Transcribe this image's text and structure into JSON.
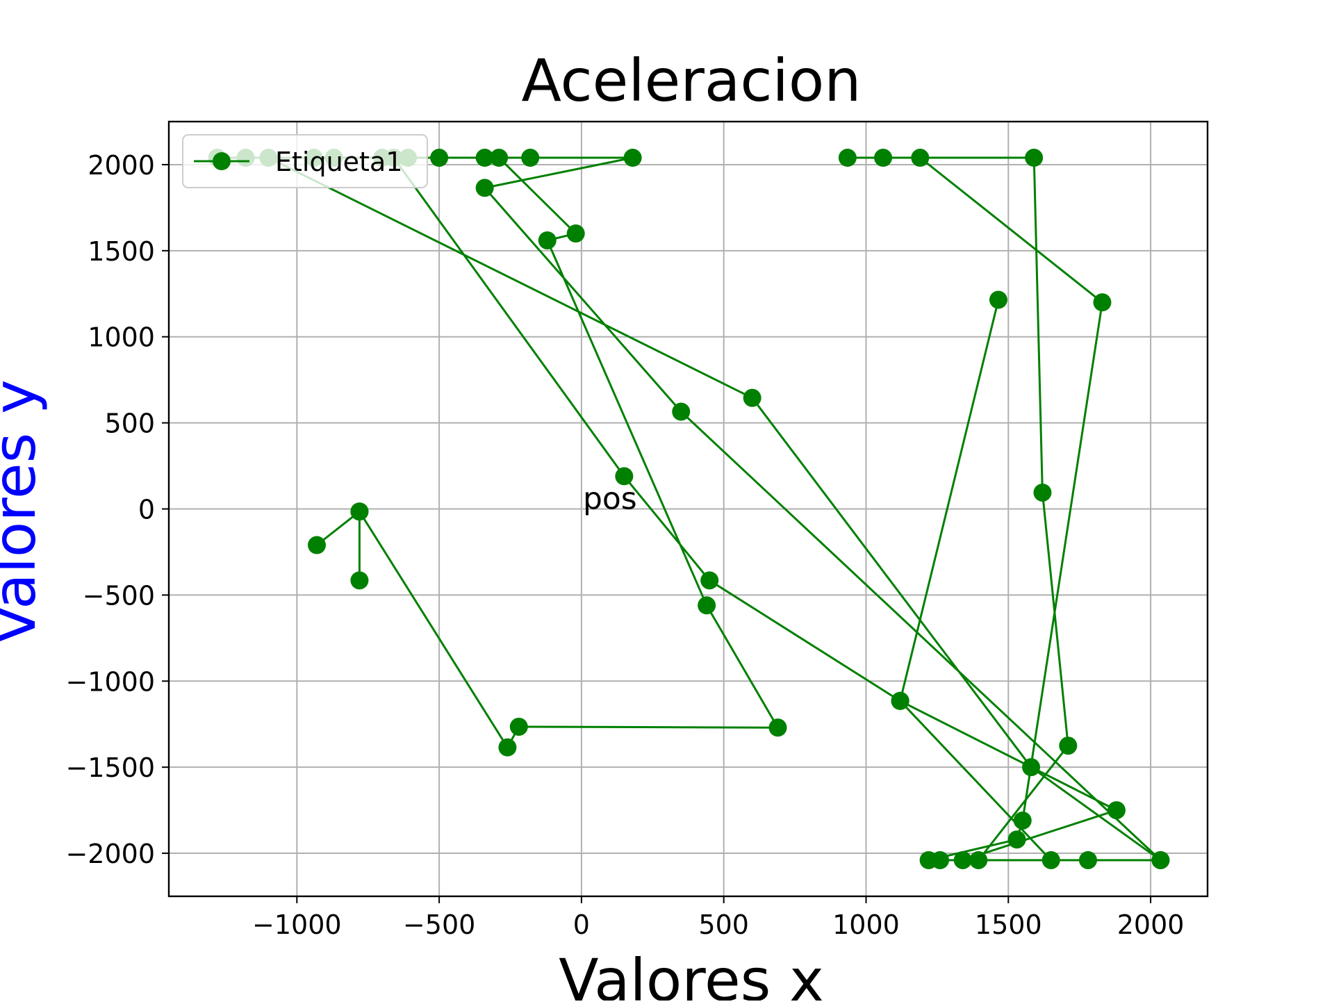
{
  "chart_data": {
    "type": "line",
    "title": "Aceleracion",
    "xlabel": "Valores x",
    "ylabel": "Valores y",
    "xlim": [
      -1450,
      2200
    ],
    "ylim": [
      -2250,
      2250
    ],
    "xticks": [
      -1000,
      -500,
      0,
      500,
      1000,
      1500,
      2000
    ],
    "yticks": [
      2000,
      1500,
      1000,
      500,
      0,
      -500,
      -1000,
      -1500,
      -2000
    ],
    "xtick_labels": [
      "−1000",
      "−500",
      "0",
      "500",
      "1000",
      "1500",
      "2000"
    ],
    "ytick_labels": [
      "2000",
      "1500",
      "1000",
      "500",
      "0",
      "−500",
      "−1000",
      "−1500",
      "−2000"
    ],
    "grid": true,
    "legend_position": "top-left",
    "annotations": [
      {
        "text": "pos",
        "x": 5,
        "y": 0
      }
    ],
    "series": [
      {
        "name": "Etiqueta1",
        "color": "#008000",
        "marker": "circle",
        "points": [
          [
            -930,
            -210
          ],
          [
            -780,
            -15
          ],
          [
            -780,
            -415
          ],
          [
            -780,
            -15
          ],
          [
            -260,
            -1385
          ],
          [
            -220,
            -1265
          ],
          [
            690,
            -1270
          ],
          [
            440,
            -560
          ],
          [
            -120,
            1560
          ],
          [
            -20,
            1600
          ],
          [
            -290,
            2040
          ],
          [
            -340,
            2040
          ],
          [
            -500,
            2040
          ],
          [
            -610,
            2040
          ],
          [
            -700,
            2040
          ],
          [
            -870,
            2040
          ],
          [
            -940,
            2040
          ],
          [
            -1180,
            2040
          ],
          [
            -1280,
            2040
          ],
          [
            -1100,
            2040
          ],
          [
            600,
            645
          ],
          [
            1580,
            -1500
          ],
          [
            2035,
            -2040
          ],
          [
            1780,
            -2040
          ],
          [
            1650,
            -2040
          ],
          [
            1120,
            -1115
          ],
          [
            1465,
            1215
          ],
          [
            1120,
            -1115
          ],
          [
            1880,
            -1750
          ],
          [
            1340,
            -2040
          ],
          [
            1260,
            -2040
          ],
          [
            1220,
            -2040
          ],
          [
            1530,
            -1920
          ],
          [
            1550,
            -1810
          ],
          [
            1830,
            1200
          ],
          [
            1190,
            2040
          ],
          [
            1060,
            2040
          ],
          [
            935,
            2040
          ],
          [
            1590,
            2040
          ],
          [
            1620,
            95
          ],
          [
            1710,
            -1375
          ],
          [
            1395,
            -2040
          ],
          [
            2035,
            -2040
          ],
          [
            350,
            565
          ],
          [
            -340,
            1865
          ],
          [
            180,
            2040
          ],
          [
            -180,
            2040
          ],
          [
            -660,
            2040
          ],
          [
            150,
            190
          ],
          [
            450,
            -415
          ],
          [
            1120,
            -1115
          ]
        ]
      }
    ]
  }
}
